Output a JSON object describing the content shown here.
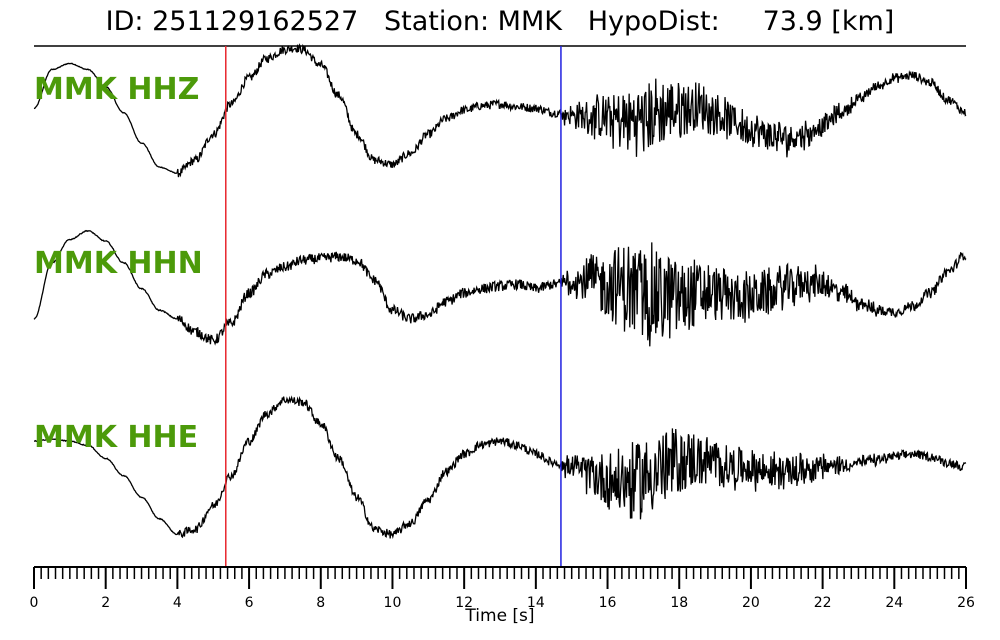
{
  "chart_data": {
    "type": "line",
    "title": "ID: 251129162527   Station: MMK   HypoDist:     73.9 [km]",
    "xlabel": "Time [s]",
    "xlim": [
      0,
      26
    ],
    "xticks": [
      0,
      2,
      4,
      6,
      8,
      10,
      12,
      14,
      16,
      18,
      20,
      22,
      24,
      26
    ],
    "minor_tick_step": 0.2,
    "p_pick": 5.35,
    "s_pick": 14.7,
    "p_color": "#e8262e",
    "s_color": "#2020e0",
    "label_color": "#4c9a0a",
    "series": [
      {
        "name": "MMK HHZ",
        "x": [
          0,
          0.5,
          1,
          1.5,
          2,
          2.5,
          3,
          3.5,
          4,
          4.5,
          5,
          5.5,
          6,
          6.5,
          7,
          7.3,
          7.5,
          8,
          8.5,
          9,
          9.5,
          10,
          10.5,
          11,
          11.5,
          12,
          12.5,
          13,
          13.5,
          14,
          14.5,
          15,
          15.5,
          16,
          16.5,
          17,
          17.5,
          18,
          18.5,
          19,
          19.5,
          20,
          20.5,
          21,
          21.5,
          22,
          22.5,
          23,
          23.5,
          24,
          24.5,
          25,
          25.5,
          26
        ],
        "y": [
          0.1,
          0.55,
          0.62,
          0.55,
          0.35,
          0.05,
          -0.3,
          -0.58,
          -0.65,
          -0.5,
          -0.2,
          0.15,
          0.45,
          0.68,
          0.78,
          0.8,
          0.78,
          0.6,
          0.25,
          -0.2,
          -0.5,
          -0.55,
          -0.42,
          -0.2,
          -0.02,
          0.08,
          0.13,
          0.15,
          0.12,
          0.1,
          0.05,
          0.02,
          0.0,
          -0.02,
          -0.05,
          -0.02,
          0.05,
          0.1,
          0.12,
          0.05,
          -0.05,
          -0.15,
          -0.22,
          -0.25,
          -0.2,
          -0.1,
          0.05,
          0.2,
          0.35,
          0.45,
          0.48,
          0.4,
          0.2,
          0.05
        ],
        "high_freq_noise": 0.05,
        "coda_burst_amplitude": 0.4
      },
      {
        "name": "MMK HHN",
        "x": [
          0,
          0.5,
          1,
          1.5,
          2,
          2.5,
          3,
          3.5,
          4,
          4.5,
          5,
          5.5,
          6,
          6.5,
          7,
          7.5,
          8,
          8.5,
          9,
          9.5,
          10,
          10.5,
          11,
          11.5,
          12,
          12.5,
          13,
          13.5,
          14,
          14.5,
          15,
          15.5,
          16,
          16.5,
          17,
          17.5,
          18,
          18.5,
          19,
          19.5,
          20,
          20.5,
          21,
          21.5,
          22,
          22.5,
          23,
          23.5,
          24,
          24.5,
          25,
          25.5,
          26
        ],
        "y": [
          -0.3,
          0.35,
          0.62,
          0.72,
          0.6,
          0.35,
          0.05,
          -0.2,
          -0.3,
          -0.45,
          -0.55,
          -0.35,
          0.0,
          0.22,
          0.3,
          0.38,
          0.4,
          0.42,
          0.38,
          0.15,
          -0.2,
          -0.3,
          -0.25,
          -0.1,
          0.0,
          0.05,
          0.08,
          0.1,
          0.05,
          0.1,
          0.15,
          0.15,
          0.1,
          0.05,
          0.0,
          -0.05,
          -0.05,
          0.0,
          0.0,
          -0.05,
          -0.05,
          0.0,
          0.08,
          0.12,
          0.1,
          0.0,
          -0.1,
          -0.2,
          -0.22,
          -0.15,
          0.0,
          0.25,
          0.45
        ],
        "high_freq_noise": 0.06,
        "coda_burst_amplitude": 0.55
      },
      {
        "name": "MMK HHE",
        "x": [
          0,
          0.5,
          1,
          1.5,
          2,
          2.5,
          3,
          3.5,
          4,
          4.5,
          5,
          5.5,
          6,
          6.5,
          7,
          7.5,
          8,
          8.5,
          9,
          9.5,
          10,
          10.5,
          11,
          11.5,
          12,
          12.5,
          13,
          13.5,
          14,
          14.5,
          15,
          15.5,
          16,
          16.5,
          17,
          17.5,
          18,
          18.5,
          19,
          19.5,
          20,
          20.5,
          21,
          21.5,
          22,
          22.5,
          23,
          23.5,
          24,
          24.5,
          25,
          25.5,
          26
        ],
        "y": [
          0.3,
          0.32,
          0.3,
          0.25,
          0.1,
          -0.1,
          -0.35,
          -0.6,
          -0.78,
          -0.72,
          -0.45,
          -0.1,
          0.3,
          0.62,
          0.78,
          0.75,
          0.5,
          0.1,
          -0.35,
          -0.72,
          -0.78,
          -0.65,
          -0.38,
          -0.05,
          0.15,
          0.26,
          0.3,
          0.25,
          0.15,
          0.05,
          0.0,
          -0.08,
          -0.15,
          -0.18,
          -0.12,
          -0.02,
          0.05,
          0.08,
          0.05,
          0.0,
          -0.02,
          -0.05,
          -0.05,
          -0.02,
          0.0,
          0.02,
          0.05,
          0.08,
          0.12,
          0.15,
          0.12,
          0.05,
          0.0
        ],
        "high_freq_noise": 0.05,
        "coda_burst_amplitude": 0.45
      }
    ]
  }
}
